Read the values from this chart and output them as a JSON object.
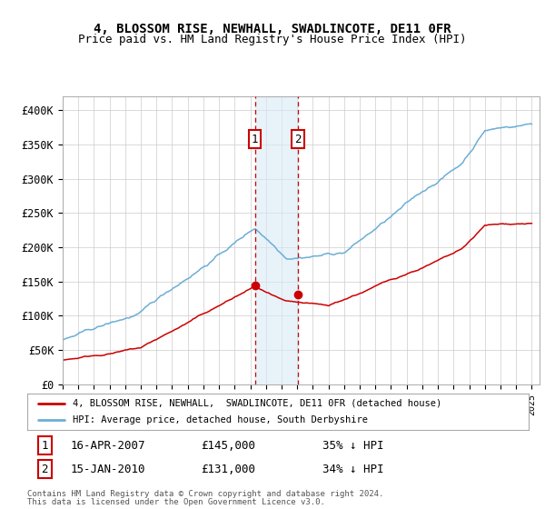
{
  "title": "4, BLOSSOM RISE, NEWHALL, SWADLINCOTE, DE11 0FR",
  "subtitle": "Price paid vs. HM Land Registry's House Price Index (HPI)",
  "title_fontsize": 10,
  "subtitle_fontsize": 9,
  "ylim": [
    0,
    420000
  ],
  "yticks": [
    0,
    50000,
    100000,
    150000,
    200000,
    250000,
    300000,
    350000,
    400000
  ],
  "ytick_labels": [
    "£0",
    "£50K",
    "£100K",
    "£150K",
    "£200K",
    "£250K",
    "£300K",
    "£350K",
    "£400K"
  ],
  "xlim_start": 1995.0,
  "xlim_end": 2025.5,
  "hpi_color": "#6baed6",
  "price_color": "#cc0000",
  "transaction1_date": 2007.29,
  "transaction1_price": 145000,
  "transaction1_label": "16-APR-2007",
  "transaction1_amount": "£145,000",
  "transaction1_pct": "35% ↓ HPI",
  "transaction2_date": 2010.04,
  "transaction2_price": 131000,
  "transaction2_label": "15-JAN-2010",
  "transaction2_amount": "£131,000",
  "transaction2_pct": "34% ↓ HPI",
  "shade_color": "#daeaf6",
  "shade_alpha": 0.6,
  "legend_line1": "4, BLOSSOM RISE, NEWHALL,  SWADLINCOTE, DE11 0FR (detached house)",
  "legend_line2": "HPI: Average price, detached house, South Derbyshire",
  "footer1": "Contains HM Land Registry data © Crown copyright and database right 2024.",
  "footer2": "This data is licensed under the Open Government Licence v3.0.",
  "background_color": "#ffffff",
  "grid_color": "#cccccc"
}
